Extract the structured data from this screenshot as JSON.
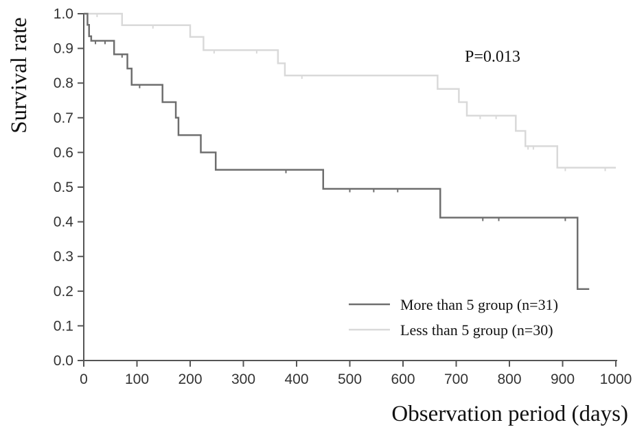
{
  "chart_data": {
    "type": "line",
    "title": "",
    "xlabel": "Observation period (days)",
    "ylabel": "Survival rate",
    "xlim": [
      0,
      1000
    ],
    "ylim": [
      0.0,
      1.0
    ],
    "xticks": [
      "0",
      "100",
      "200",
      "300",
      "400",
      "500",
      "600",
      "700",
      "800",
      "900",
      "1000"
    ],
    "yticks": [
      "0.0",
      "0.1",
      "0.2",
      "0.3",
      "0.4",
      "0.5",
      "0.6",
      "0.7",
      "0.8",
      "0.9",
      "1.0"
    ],
    "grid": false,
    "legend_position": "bottom-right",
    "annotation": "P=0.013",
    "series": [
      {
        "name": "More than 5 group (n=31)",
        "color": "#6e6e6e",
        "step": [
          [
            0,
            1.0
          ],
          [
            7,
            0.968
          ],
          [
            10,
            0.935
          ],
          [
            14,
            0.922
          ],
          [
            57,
            0.883
          ],
          [
            82,
            0.842
          ],
          [
            90,
            0.795
          ],
          [
            148,
            0.745
          ],
          [
            173,
            0.7
          ],
          [
            178,
            0.65
          ],
          [
            220,
            0.6
          ],
          [
            248,
            0.55
          ],
          [
            450,
            0.495
          ],
          [
            670,
            0.412
          ],
          [
            928,
            0.206
          ],
          [
            950,
            0.206
          ]
        ],
        "censored": [
          [
            22,
            0.922
          ],
          [
            40,
            0.922
          ],
          [
            72,
            0.883
          ],
          [
            105,
            0.795
          ],
          [
            380,
            0.55
          ],
          [
            500,
            0.495
          ],
          [
            545,
            0.495
          ],
          [
            590,
            0.495
          ],
          [
            750,
            0.412
          ],
          [
            780,
            0.412
          ],
          [
            905,
            0.412
          ]
        ]
      },
      {
        "name": "Less than 5 group (n=30)",
        "color": "#d9d9d9",
        "step": [
          [
            0,
            1.0
          ],
          [
            72,
            0.967
          ],
          [
            200,
            0.933
          ],
          [
            225,
            0.895
          ],
          [
            365,
            0.857
          ],
          [
            378,
            0.822
          ],
          [
            665,
            0.783
          ],
          [
            705,
            0.745
          ],
          [
            720,
            0.706
          ],
          [
            812,
            0.662
          ],
          [
            830,
            0.618
          ],
          [
            890,
            0.556
          ],
          [
            1000,
            0.556
          ]
        ],
        "censored": [
          [
            25,
            1.0
          ],
          [
            130,
            0.967
          ],
          [
            245,
            0.895
          ],
          [
            325,
            0.895
          ],
          [
            410,
            0.822
          ],
          [
            745,
            0.706
          ],
          [
            775,
            0.706
          ],
          [
            835,
            0.618
          ],
          [
            845,
            0.618
          ],
          [
            905,
            0.556
          ],
          [
            980,
            0.556
          ]
        ]
      }
    ]
  }
}
